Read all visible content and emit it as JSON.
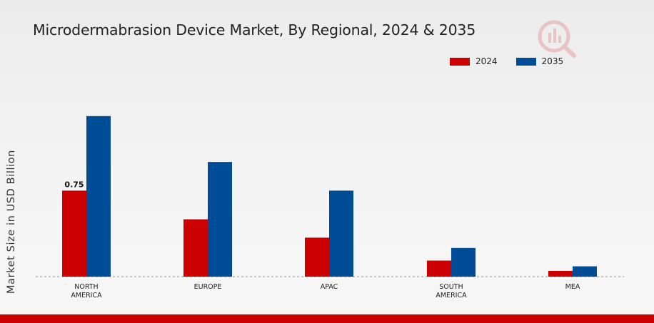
{
  "chart_data": {
    "type": "bar",
    "title": "Microdermabrasion Device Market, By Regional, 2024 & 2035",
    "ylabel": "Market Size in USD Billion",
    "xlabel": "",
    "categories": [
      [
        "NORTH",
        "AMERICA"
      ],
      [
        "EUROPE"
      ],
      [
        "APAC"
      ],
      [
        "SOUTH",
        "AMERICA"
      ],
      [
        "MEA"
      ]
    ],
    "series": [
      {
        "name": "2024",
        "color": "#cc0000",
        "values": [
          0.75,
          0.5,
          0.34,
          0.14,
          0.05
        ]
      },
      {
        "name": "2035",
        "color": "#004c97",
        "values": [
          1.4,
          1.0,
          0.75,
          0.25,
          0.09
        ]
      }
    ],
    "data_labels": [
      {
        "series": 0,
        "index": 0,
        "text": "0.75"
      }
    ],
    "ylim": [
      0,
      1.6
    ],
    "grid": false,
    "legend_position": "top-right",
    "baseline": "dashed"
  }
}
